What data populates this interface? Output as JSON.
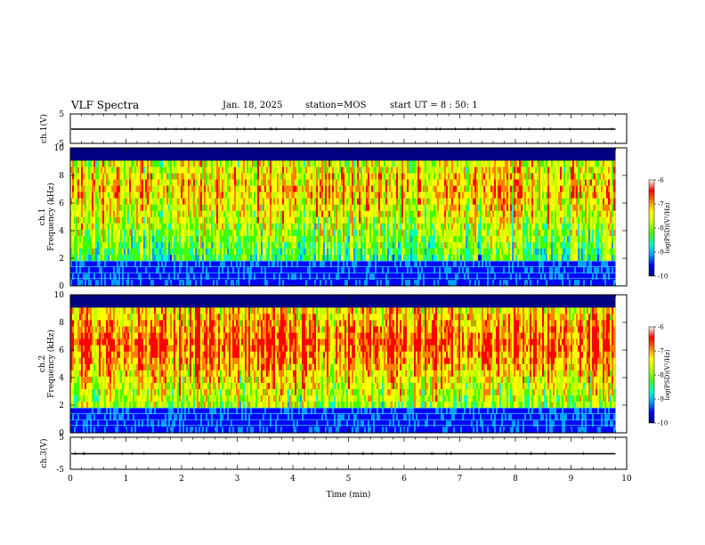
{
  "header": {
    "title": "VLF Spectra",
    "date": "Jan. 18, 2025",
    "station": "station=MOS",
    "start": "start UT =  8 : 50: 1"
  },
  "chart_data": {
    "type": "heatmap",
    "xlabel": "Time (min)",
    "xlim": [
      0,
      10
    ],
    "x_ticks": [
      "0",
      "1",
      "2",
      "3",
      "4",
      "5",
      "6",
      "7",
      "8",
      "9",
      "10"
    ],
    "time_series_panels": [
      {
        "ylabel": "ch.1(V)",
        "ylim": [
          -5,
          5
        ],
        "y_ticks": [
          "5",
          "-5"
        ],
        "level": 0
      },
      {
        "ylabel": "ch.3(V)",
        "ylim": [
          -5,
          5
        ],
        "y_ticks": [
          "5",
          "-5"
        ],
        "level": 0
      }
    ],
    "spectrogram_panels": [
      {
        "ylabel": "ch.1 Frequency (kHz)",
        "ylim": [
          0,
          10
        ],
        "y_ticks": [
          "0",
          "2",
          "4",
          "6",
          "8",
          "10"
        ],
        "data_extent_min": 9.8
      },
      {
        "ylabel": "ch.2 Frequency (kHz)",
        "ylim": [
          0,
          10
        ],
        "y_ticks": [
          "0",
          "2",
          "4",
          "6",
          "8",
          "10"
        ],
        "data_extent_min": 9.8
      }
    ],
    "colorbar": {
      "label": "log(PSD)(V²/Hz)",
      "range": [
        -10,
        -6
      ],
      "ticks": [
        "-6",
        "-7",
        "-8",
        "-9",
        "-10"
      ],
      "colors": [
        "#000080",
        "#0000ff",
        "#00a0ff",
        "#00ffc0",
        "#40ff00",
        "#c0ff00",
        "#ffff00",
        "#ff8000",
        "#ff0000",
        "#ffffff"
      ]
    }
  }
}
